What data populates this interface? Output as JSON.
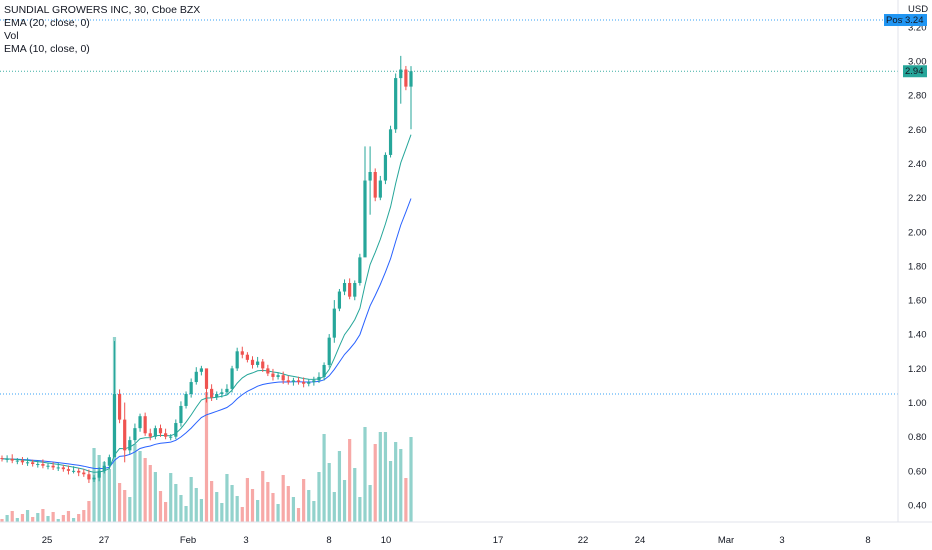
{
  "legend": {
    "title": "SUNDIAL GROWERS INC, 30, Cboe BZX",
    "ema20": "EMA (20, close, 0)",
    "vol": "Vol",
    "ema10": "EMA (10, close, 0)"
  },
  "currency": "USD",
  "post_label": "Post",
  "post_price": "3.24",
  "last_price": "2.94",
  "colors": {
    "up": "#26a69a",
    "down": "#ef5350",
    "ema20": "#2962ff",
    "ema10": "#26a69a",
    "post": "#2196f3",
    "last": "#26a69a"
  },
  "chart_data": {
    "type": "candlestick",
    "y_ticks": [
      "3.20",
      "3.00",
      "2.80",
      "2.60",
      "2.40",
      "2.20",
      "2.00",
      "1.80",
      "1.60",
      "1.40",
      "1.20",
      "1.00",
      "0.80",
      "0.60",
      "0.40"
    ],
    "y_values": [
      3.2,
      3.0,
      2.8,
      2.6,
      2.4,
      2.2,
      2.0,
      1.8,
      1.6,
      1.4,
      1.2,
      1.0,
      0.8,
      0.6,
      0.4
    ],
    "x_ticks": [
      {
        "label": "25",
        "x": "Jan 25"
      },
      {
        "label": "27",
        "x": "Jan 27"
      },
      {
        "label": "Feb",
        "x": "Feb 1"
      },
      {
        "label": "3",
        "x": "Feb 3"
      },
      {
        "label": "8",
        "x": "Feb 8"
      },
      {
        "label": "10",
        "x": "Feb 10"
      },
      {
        "label": "17",
        "x": "Feb 17"
      },
      {
        "label": "22",
        "x": "Feb 22"
      },
      {
        "label": "24",
        "x": "Feb 24"
      },
      {
        "label": "Mar",
        "x": "Mar 1"
      },
      {
        "label": "3",
        "x": "Mar 3"
      },
      {
        "label": "8",
        "x": "Mar 8"
      }
    ],
    "ylim": [
      0.33,
      3.25
    ],
    "horizontal_lines": [
      3.24,
      2.94,
      1.05
    ],
    "closes": [
      0.67,
      0.67,
      0.66,
      0.66,
      0.65,
      0.65,
      0.64,
      0.64,
      0.63,
      0.63,
      0.62,
      0.62,
      0.61,
      0.6,
      0.6,
      0.59,
      0.58,
      0.55,
      0.56,
      0.6,
      0.63,
      0.68,
      1.05,
      0.9,
      0.72,
      0.78,
      0.85,
      0.92,
      0.82,
      0.8,
      0.85,
      0.82,
      0.8,
      0.8,
      0.88,
      0.98,
      1.05,
      1.12,
      1.18,
      1.2,
      1.08,
      1.03,
      1.05,
      1.06,
      1.08,
      1.2,
      1.3,
      1.28,
      1.25,
      1.22,
      1.24,
      1.2,
      1.17,
      1.15,
      1.16,
      1.13,
      1.12,
      1.13,
      1.12,
      1.11,
      1.12,
      1.13,
      1.15,
      1.22,
      1.38,
      1.55,
      1.65,
      1.7,
      1.62,
      1.7,
      1.85,
      2.3,
      2.35,
      2.2,
      2.3,
      2.45,
      2.6,
      2.9,
      2.95,
      2.85,
      2.94
    ],
    "ema10_end": 2.6,
    "ema20_end": 2.33
  }
}
